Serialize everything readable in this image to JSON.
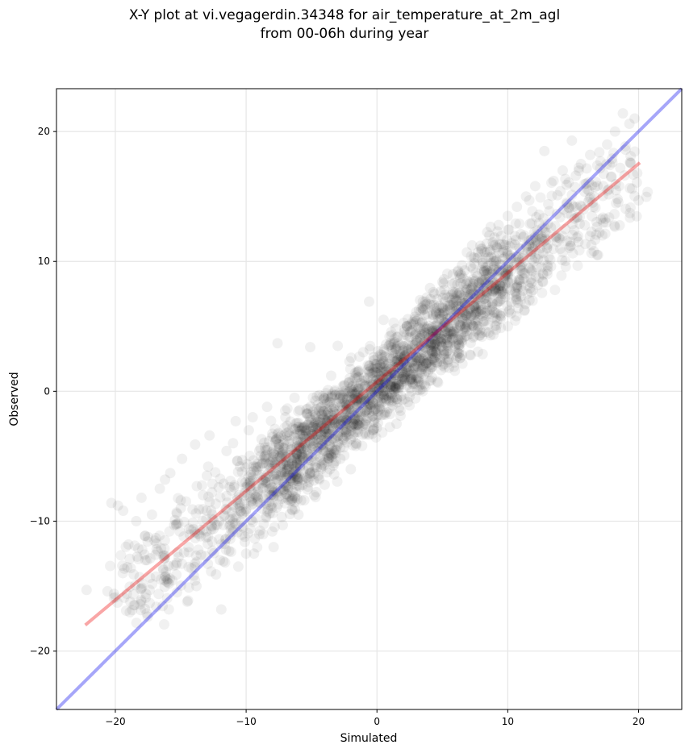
{
  "chart_data": {
    "type": "scatter",
    "title_line1": "X-Y plot at vi.vegagerdin.34348 for air_temperature_at_2m_agl",
    "title_line2": "from 00-06h during year",
    "xlabel": "Simulated",
    "ylabel": "Observed",
    "xlim": [
      -24.5,
      23.3
    ],
    "ylim": [
      -24.5,
      23.3
    ],
    "xticks": [
      -20,
      -10,
      0,
      10,
      20
    ],
    "yticks": [
      -20,
      -10,
      0,
      10,
      20
    ],
    "xtick_labels": [
      "−20",
      "−10",
      "0",
      "10",
      "20"
    ],
    "ytick_labels": [
      "−20",
      "−10",
      "0",
      "10",
      "20"
    ],
    "grid": true,
    "point_color": "#000000",
    "point_opacity": 0.06,
    "identity_line": {
      "color": "#0000ee",
      "opacity": 0.35,
      "x": [
        -24.5,
        23.3
      ],
      "y": [
        -24.5,
        23.3
      ]
    },
    "fit_line": {
      "color": "#ee0000",
      "opacity": 0.35,
      "x": [
        -22.3,
        20.1
      ],
      "y": [
        -18.0,
        17.6
      ]
    },
    "points": [
      [
        -22.2,
        -15.3
      ],
      [
        -20.6,
        -15.4
      ],
      [
        -20.1,
        -15.6
      ],
      [
        -20.3,
        -8.6
      ],
      [
        -19.8,
        -8.8
      ],
      [
        -19.4,
        -9.2
      ],
      [
        -19.0,
        -11.8
      ],
      [
        -18.9,
        -12.9
      ],
      [
        -18.6,
        -14.1
      ],
      [
        -18.1,
        -16.4
      ],
      [
        -17.6,
        -17.1
      ],
      [
        -18.4,
        -10.0
      ],
      [
        -18.0,
        -8.2
      ],
      [
        -17.2,
        -9.5
      ],
      [
        -17.7,
        -13.0
      ],
      [
        -16.9,
        -11.3
      ],
      [
        -16.6,
        -7.5
      ],
      [
        -16.2,
        -6.8
      ],
      [
        -16.5,
        -12.1
      ],
      [
        -15.9,
        -14.8
      ],
      [
        -15.5,
        -10.3
      ],
      [
        -15.3,
        -13.2
      ],
      [
        -15.8,
        -6.3
      ],
      [
        -15.0,
        -8.4
      ],
      [
        -14.9,
        -5.2
      ],
      [
        -14.5,
        -16.2
      ],
      [
        -14.4,
        -12.0
      ],
      [
        -14.1,
        -9.1
      ],
      [
        -13.9,
        -4.1
      ],
      [
        -13.8,
        -15.0
      ],
      [
        -13.6,
        -11.0
      ],
      [
        -13.3,
        -8.0
      ],
      [
        -13.1,
        -12.7
      ],
      [
        -12.9,
        -5.8
      ],
      [
        -12.8,
        -3.4
      ],
      [
        -12.5,
        -10.6
      ],
      [
        -12.3,
        -14.1
      ],
      [
        -12.1,
        -7.4
      ],
      [
        -11.9,
        -16.8
      ],
      [
        -11.7,
        -9.6
      ],
      [
        -11.5,
        -4.6
      ],
      [
        -11.3,
        -12.3
      ],
      [
        -11.2,
        -6.9
      ],
      [
        -11.0,
        -10.1
      ],
      [
        -10.8,
        -2.3
      ],
      [
        -10.6,
        -13.5
      ],
      [
        -10.5,
        -8.8
      ],
      [
        -10.3,
        -5.3
      ],
      [
        -10.1,
        -11.6
      ],
      [
        -9.9,
        -7.2
      ],
      [
        -9.8,
        -3.0
      ],
      [
        -9.6,
        -9.9
      ],
      [
        -9.4,
        -12.5
      ],
      [
        -9.2,
        -6.1
      ],
      [
        -9.1,
        -8.3
      ],
      [
        -8.9,
        -4.4
      ],
      [
        -8.7,
        -11.0
      ],
      [
        -8.5,
        -7.0
      ],
      [
        -8.4,
        -1.2
      ],
      [
        -8.2,
        -9.4
      ],
      [
        -8.0,
        -5.6
      ],
      [
        -7.9,
        -12.0
      ],
      [
        -7.7,
        -3.7
      ],
      [
        -7.5,
        -8.1
      ],
      [
        -7.3,
        -6.4
      ],
      [
        -7.2,
        -10.3
      ],
      [
        -7.0,
        -2.0
      ],
      [
        -6.8,
        -7.6
      ],
      [
        -6.6,
        -4.9
      ],
      [
        -6.5,
        -9.1
      ],
      [
        -6.3,
        -0.5
      ],
      [
        -6.1,
        -6.2
      ],
      [
        -5.9,
        -3.3
      ],
      [
        -5.8,
        -8.4
      ],
      [
        -5.6,
        -5.1
      ],
      [
        -5.4,
        -1.7
      ],
      [
        -5.2,
        -7.0
      ],
      [
        -5.1,
        3.4
      ],
      [
        -4.9,
        -4.2
      ],
      [
        -4.7,
        -2.5
      ],
      [
        -4.5,
        -6.5
      ],
      [
        -4.4,
        -0.3
      ],
      [
        -4.2,
        -3.8
      ],
      [
        -4.0,
        -5.3
      ],
      [
        -3.8,
        -1.4
      ],
      [
        -3.7,
        -2.9
      ],
      [
        -3.5,
        1.2
      ],
      [
        -3.3,
        -4.6
      ],
      [
        -3.1,
        -0.9
      ],
      [
        -3.0,
        -2.1
      ],
      [
        -2.8,
        -5.2
      ],
      [
        -2.6,
        0.4
      ],
      [
        -2.4,
        -3.0
      ],
      [
        -2.3,
        -1.6
      ],
      [
        -2.1,
        2.3
      ],
      [
        -1.9,
        -2.7
      ],
      [
        -1.7,
        -0.6
      ],
      [
        -1.6,
        -4.0
      ],
      [
        -1.4,
        1.1
      ],
      [
        -1.2,
        -1.9
      ],
      [
        -1.0,
        -0.2
      ],
      [
        -0.9,
        -3.2
      ],
      [
        -0.7,
        2.0
      ],
      [
        -0.5,
        -1.0
      ],
      [
        -0.3,
        0.6
      ],
      [
        -0.2,
        -2.2
      ],
      [
        0.0,
        1.4
      ],
      [
        0.2,
        -0.4
      ],
      [
        0.4,
        2.8
      ],
      [
        0.5,
        -1.8
      ],
      [
        0.7,
        0.9
      ],
      [
        0.9,
        3.5
      ],
      [
        1.1,
        -0.8
      ],
      [
        1.2,
        1.9
      ],
      [
        1.4,
        0.3
      ],
      [
        1.6,
        4.2
      ],
      [
        1.8,
        -1.5
      ],
      [
        1.9,
        2.6
      ],
      [
        2.1,
        1.0
      ],
      [
        2.3,
        5.0
      ],
      [
        2.5,
        -0.4
      ],
      [
        2.6,
        3.3
      ],
      [
        2.8,
        1.8
      ],
      [
        3.0,
        6.1
      ],
      [
        3.2,
        0.7
      ],
      [
        3.3,
        4.1
      ],
      [
        3.5,
        2.5
      ],
      [
        3.7,
        6.9
      ],
      [
        3.9,
        1.5
      ],
      [
        4.0,
        4.8
      ],
      [
        4.2,
        3.1
      ],
      [
        4.4,
        7.5
      ],
      [
        4.6,
        2.2
      ],
      [
        4.7,
        5.6
      ],
      [
        4.9,
        3.8
      ],
      [
        5.1,
        8.3
      ],
      [
        5.3,
        2.9
      ],
      [
        5.4,
        6.3
      ],
      [
        5.6,
        4.6
      ],
      [
        5.8,
        9.0
      ],
      [
        6.0,
        3.5
      ],
      [
        6.1,
        7.0
      ],
      [
        6.3,
        5.3
      ],
      [
        6.5,
        9.7
      ],
      [
        6.7,
        4.2
      ],
      [
        6.8,
        7.8
      ],
      [
        7.0,
        6.0
      ],
      [
        7.2,
        10.4
      ],
      [
        7.4,
        5.0
      ],
      [
        7.5,
        8.5
      ],
      [
        7.7,
        6.7
      ],
      [
        7.9,
        11.2
      ],
      [
        8.1,
        5.8
      ],
      [
        8.2,
        9.2
      ],
      [
        8.4,
        7.4
      ],
      [
        8.6,
        12.0
      ],
      [
        8.8,
        6.5
      ],
      [
        8.9,
        10.0
      ],
      [
        9.1,
        8.2
      ],
      [
        9.3,
        12.8
      ],
      [
        9.5,
        7.1
      ],
      [
        9.6,
        10.7
      ],
      [
        9.8,
        8.9
      ],
      [
        10.0,
        13.5
      ],
      [
        10.2,
        7.8
      ],
      [
        10.3,
        11.4
      ],
      [
        10.5,
        9.7
      ],
      [
        10.7,
        14.2
      ],
      [
        10.9,
        8.6
      ],
      [
        11.0,
        12.1
      ],
      [
        11.2,
        10.4
      ],
      [
        11.4,
        15.0
      ],
      [
        11.6,
        9.5
      ],
      [
        11.7,
        12.9
      ],
      [
        11.9,
        11.1
      ],
      [
        12.1,
        15.8
      ],
      [
        12.3,
        10.2
      ],
      [
        12.4,
        13.6
      ],
      [
        12.6,
        11.9
      ],
      [
        12.8,
        18.5
      ],
      [
        13.0,
        11.0
      ],
      [
        13.1,
        14.4
      ],
      [
        13.3,
        12.6
      ],
      [
        13.5,
        16.2
      ],
      [
        13.7,
        11.8
      ],
      [
        13.8,
        15.1
      ],
      [
        14.0,
        13.4
      ],
      [
        14.2,
        17.0
      ],
      [
        14.4,
        12.5
      ],
      [
        14.5,
        15.9
      ],
      [
        14.7,
        14.1
      ],
      [
        14.9,
        19.3
      ],
      [
        15.1,
        13.3
      ],
      [
        15.2,
        16.6
      ],
      [
        15.4,
        11.5
      ],
      [
        15.6,
        17.5
      ],
      [
        15.8,
        14.0
      ],
      [
        16.0,
        16.0
      ],
      [
        16.3,
        18.2
      ],
      [
        16.6,
        15.0
      ],
      [
        16.9,
        10.5
      ],
      [
        17.0,
        18.4
      ],
      [
        17.3,
        15.8
      ],
      [
        17.6,
        19.0
      ],
      [
        17.9,
        16.5
      ],
      [
        18.2,
        20.0
      ],
      [
        18.4,
        14.8
      ],
      [
        18.6,
        17.2
      ],
      [
        18.8,
        21.4
      ],
      [
        19.0,
        18.6
      ],
      [
        19.3,
        20.6
      ],
      [
        19.5,
        15.6
      ],
      [
        19.7,
        21.0
      ],
      [
        19.9,
        16.8
      ],
      [
        20.0,
        14.7
      ],
      [
        -3.0,
        3.5
      ],
      [
        -0.6,
        6.9
      ],
      [
        0.5,
        5.5
      ],
      [
        -7.6,
        3.7
      ],
      [
        -4.8,
        -8.0
      ],
      [
        -2.0,
        -6.0
      ],
      [
        1.5,
        -2.5
      ],
      [
        3.5,
        0.0
      ],
      [
        5.5,
        1.8
      ],
      [
        6.5,
        2.8
      ],
      [
        8.0,
        4.5
      ],
      [
        9.5,
        6.0
      ],
      [
        11.5,
        7.5
      ],
      [
        -9.5,
        -2.0
      ],
      [
        -11.0,
        -4.0
      ],
      [
        -13.0,
        -6.5
      ],
      [
        -15.0,
        -9.0
      ],
      [
        -17.0,
        -11.5
      ],
      [
        -16.0,
        -14.5
      ],
      [
        -14.0,
        -14.2
      ],
      [
        -12.0,
        -13.0
      ],
      [
        -10.0,
        -12.5
      ],
      [
        -8.0,
        -10.8
      ],
      [
        -6.0,
        -9.5
      ],
      [
        -4.0,
        -7.2
      ]
    ]
  }
}
